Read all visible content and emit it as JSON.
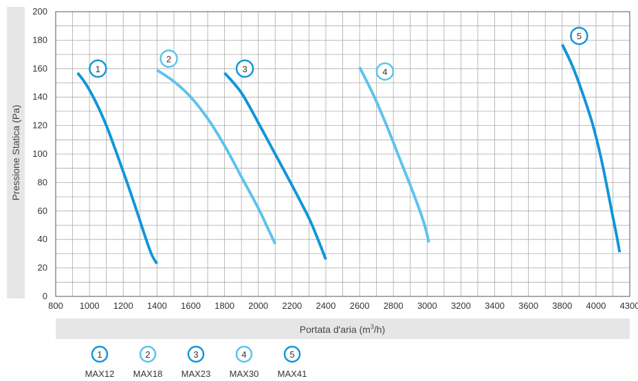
{
  "chart_data": {
    "type": "line",
    "xlabel": "Portata d'aria  (m",
    "xlabel_sup": "3",
    "xlabel_suffix": "/h)",
    "ylabel": "Pressione Statica (Pa)",
    "xlim": [
      800,
      4300
    ],
    "ylim": [
      0,
      200
    ],
    "x_ticks": [
      800,
      1000,
      1200,
      1400,
      1600,
      1800,
      2000,
      2200,
      2400,
      2600,
      2800,
      3000,
      3200,
      3400,
      3600,
      3800,
      4000,
      4300
    ],
    "y_ticks": [
      0,
      20,
      40,
      60,
      80,
      100,
      120,
      140,
      160,
      180,
      200
    ],
    "x_tick_labels": [
      "800",
      "1000",
      "1200",
      "1400",
      "1600",
      "1800",
      "2000",
      "2200",
      "2400",
      "2600",
      "2800",
      "3000",
      "3200",
      "3400",
      "3600",
      "3800",
      "4000",
      "4300"
    ],
    "y_tick_labels": [
      "0",
      "20",
      "40",
      "60",
      "80",
      "100",
      "120",
      "140",
      "160",
      "180",
      "200"
    ],
    "grid": true,
    "legend_position": "bottom",
    "series": [
      {
        "name": "MAX12",
        "id": "1",
        "color": "#1196d8",
        "points": [
          [
            930,
            157
          ],
          [
            980,
            149
          ],
          [
            1040,
            136
          ],
          [
            1100,
            120
          ],
          [
            1160,
            101
          ],
          [
            1220,
            81
          ],
          [
            1280,
            60
          ],
          [
            1330,
            42
          ],
          [
            1370,
            29
          ],
          [
            1400,
            23
          ]
        ],
        "badge_point": [
          1050,
          160
        ]
      },
      {
        "name": "MAX18",
        "id": "2",
        "color": "#5cc3ec",
        "points": [
          [
            1400,
            159
          ],
          [
            1500,
            151
          ],
          [
            1600,
            140
          ],
          [
            1700,
            125
          ],
          [
            1800,
            106
          ],
          [
            1900,
            84
          ],
          [
            2000,
            62
          ],
          [
            2060,
            47
          ],
          [
            2100,
            37
          ]
        ],
        "badge_point": [
          1470,
          167
        ]
      },
      {
        "name": "MAX23",
        "id": "3",
        "color": "#1196d8",
        "points": [
          [
            1800,
            157
          ],
          [
            1900,
            143
          ],
          [
            2000,
            122
          ],
          [
            2100,
            100
          ],
          [
            2200,
            78
          ],
          [
            2300,
            55
          ],
          [
            2350,
            41
          ],
          [
            2390,
            29
          ],
          [
            2400,
            26
          ]
        ],
        "badge_point": [
          1920,
          160
        ]
      },
      {
        "name": "MAX30",
        "id": "4",
        "color": "#5cc3ec",
        "points": [
          [
            2600,
            161
          ],
          [
            2680,
            142
          ],
          [
            2760,
            120
          ],
          [
            2840,
            96
          ],
          [
            2920,
            72
          ],
          [
            2980,
            52
          ],
          [
            3010,
            38
          ]
        ],
        "badge_point": [
          2750,
          158
        ]
      },
      {
        "name": "MAX41",
        "id": "5",
        "color": "#1196d8",
        "points": [
          [
            3800,
            177
          ],
          [
            3860,
            162
          ],
          [
            3920,
            143
          ],
          [
            3980,
            121
          ],
          [
            4040,
            99
          ],
          [
            4100,
            76
          ],
          [
            4150,
            56
          ],
          [
            4190,
            40
          ],
          [
            4210,
            31
          ]
        ],
        "badge_point": [
          3900,
          183
        ]
      }
    ]
  }
}
